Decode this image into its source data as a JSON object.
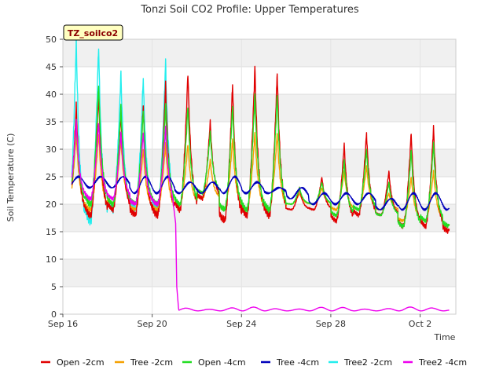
{
  "chart_data": {
    "type": "line",
    "title": "Tonzi Soil CO2 Profile: Upper Temperatures",
    "xlabel": "Time",
    "ylabel": "Soil Temperature (C)",
    "badge": "TZ_soilco2",
    "xlim": [
      0,
      17.6
    ],
    "ylim": [
      0,
      50
    ],
    "yticks": [
      0,
      5,
      10,
      15,
      20,
      25,
      30,
      35,
      40,
      45,
      50
    ],
    "xticks": [
      {
        "x": 0,
        "label": "Sep 16"
      },
      {
        "x": 4,
        "label": "Sep 20"
      },
      {
        "x": 8,
        "label": "Sep 24"
      },
      {
        "x": 12,
        "label": "Sep 28"
      },
      {
        "x": 16,
        "label": "Oct 2"
      }
    ],
    "grid": true,
    "legend_position": "bottom",
    "series": [
      {
        "name": "Open -2cm",
        "color": "#e00000",
        "daily": [
          [
            18,
            38
          ],
          [
            18,
            40
          ],
          [
            19,
            37
          ],
          [
            18,
            38
          ],
          [
            18,
            42
          ],
          [
            19,
            44
          ],
          [
            21,
            35
          ],
          [
            17,
            42
          ],
          [
            18,
            45
          ],
          [
            18,
            44
          ],
          [
            19,
            23
          ],
          [
            19,
            25
          ],
          [
            17,
            31
          ],
          [
            18,
            33
          ],
          [
            18,
            26
          ],
          [
            16,
            33
          ],
          [
            16,
            34
          ],
          [
            15,
            35
          ]
        ]
      },
      {
        "name": "Tree -2cm",
        "color": "#f5a000",
        "daily": [
          [
            19,
            33
          ],
          [
            19,
            33
          ],
          [
            20,
            32
          ],
          [
            19,
            30
          ],
          [
            19,
            31
          ],
          [
            20,
            31
          ],
          [
            21,
            28
          ],
          [
            19,
            32
          ],
          [
            19,
            33
          ],
          [
            19,
            33
          ],
          [
            20,
            22
          ],
          [
            20,
            23
          ],
          [
            19,
            26
          ],
          [
            19,
            27
          ],
          [
            19,
            22
          ],
          [
            17,
            25
          ],
          [
            17,
            26
          ],
          [
            16,
            27
          ]
        ]
      },
      {
        "name": "Open -4cm",
        "color": "#22dd22",
        "daily": [
          [
            20,
            35
          ],
          [
            20,
            42
          ],
          [
            20,
            38
          ],
          [
            20,
            37
          ],
          [
            20,
            38
          ],
          [
            20,
            38
          ],
          [
            22,
            33
          ],
          [
            19,
            38
          ],
          [
            19,
            40
          ],
          [
            19,
            40
          ],
          [
            20,
            23
          ],
          [
            20,
            24
          ],
          [
            18,
            28
          ],
          [
            19,
            30
          ],
          [
            18,
            24
          ],
          [
            16,
            30
          ],
          [
            17,
            31
          ],
          [
            16,
            31
          ]
        ]
      },
      {
        "name": "Tree -4cm",
        "color": "#0000bb",
        "daily": [
          [
            23,
            25
          ],
          [
            23,
            25
          ],
          [
            23,
            25
          ],
          [
            22,
            25
          ],
          [
            22,
            25
          ],
          [
            22,
            24
          ],
          [
            22,
            24
          ],
          [
            22,
            25
          ],
          [
            22,
            24
          ],
          [
            22,
            23
          ],
          [
            21,
            23
          ],
          [
            20,
            22
          ],
          [
            20,
            22
          ],
          [
            20,
            22
          ],
          [
            19,
            21
          ],
          [
            19,
            22
          ],
          [
            19,
            22
          ],
          [
            19,
            22
          ]
        ]
      },
      {
        "name": "Tree2 -2cm",
        "color": "#22eeee",
        "daily": [
          [
            16,
            50
          ],
          [
            17,
            49
          ],
          [
            19,
            44
          ],
          [
            19,
            43
          ],
          [
            19,
            46
          ]
        ]
      },
      {
        "name": "Tree2 -4cm",
        "color": "#ee00ee",
        "daily": [
          [
            21,
            35
          ],
          [
            21,
            35
          ],
          [
            21,
            33
          ],
          [
            20,
            33
          ],
          [
            20,
            34
          ]
        ],
        "after_drop": {
          "x_start": 5.2,
          "x_end": 17.3,
          "low": 0.6,
          "high": 1.3
        },
        "drop_x": 5.05
      }
    ]
  }
}
